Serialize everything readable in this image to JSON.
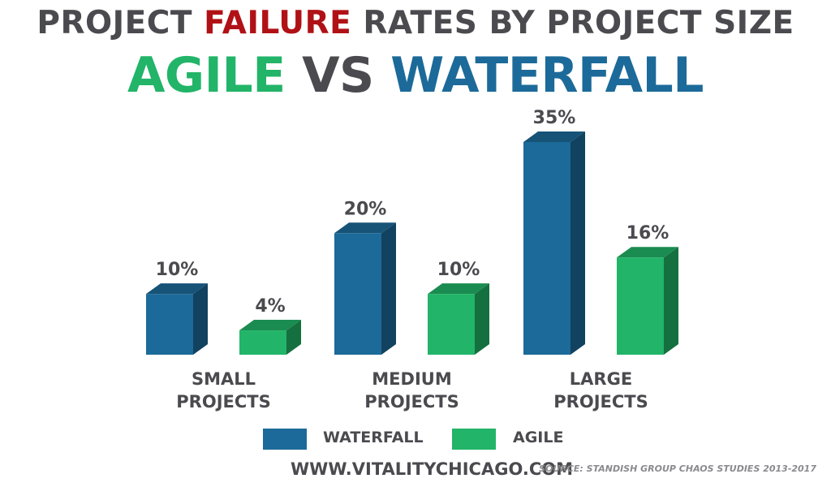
{
  "header": {
    "title_part1": "PROJECT ",
    "title_highlight": "FAILURE",
    "title_part2": " RATES BY PROJECT SIZE",
    "subtitle_agile": "AGILE",
    "subtitle_vs": " VS ",
    "subtitle_waterfall": "WATERFALL"
  },
  "colors": {
    "waterfall": "#1c6a99",
    "agile": "#22b468",
    "text": "#4a4a4f",
    "highlight": "#b01116"
  },
  "chart_data": {
    "type": "bar",
    "categories": [
      [
        "SMALL",
        "PROJECTS"
      ],
      [
        "MEDIUM",
        "PROJECTS"
      ],
      [
        "LARGE",
        "PROJECTS"
      ]
    ],
    "series": [
      {
        "name": "WATERFALL",
        "values": [
          10,
          20,
          35
        ],
        "labels": [
          "10%",
          "20%",
          "35%"
        ]
      },
      {
        "name": "AGILE",
        "values": [
          4,
          10,
          16
        ],
        "labels": [
          "4%",
          "10%",
          "16%"
        ]
      }
    ],
    "unit": "%",
    "legend": "bottom-center",
    "grid": false
  },
  "legend": {
    "waterfall_label": "WATERFALL",
    "agile_label": "AGILE"
  },
  "footer": {
    "url": "WWW.VITALITYCHICAGO.COM",
    "source": "SOURCE: STANDISH GROUP CHAOS STUDIES 2013-2017"
  }
}
